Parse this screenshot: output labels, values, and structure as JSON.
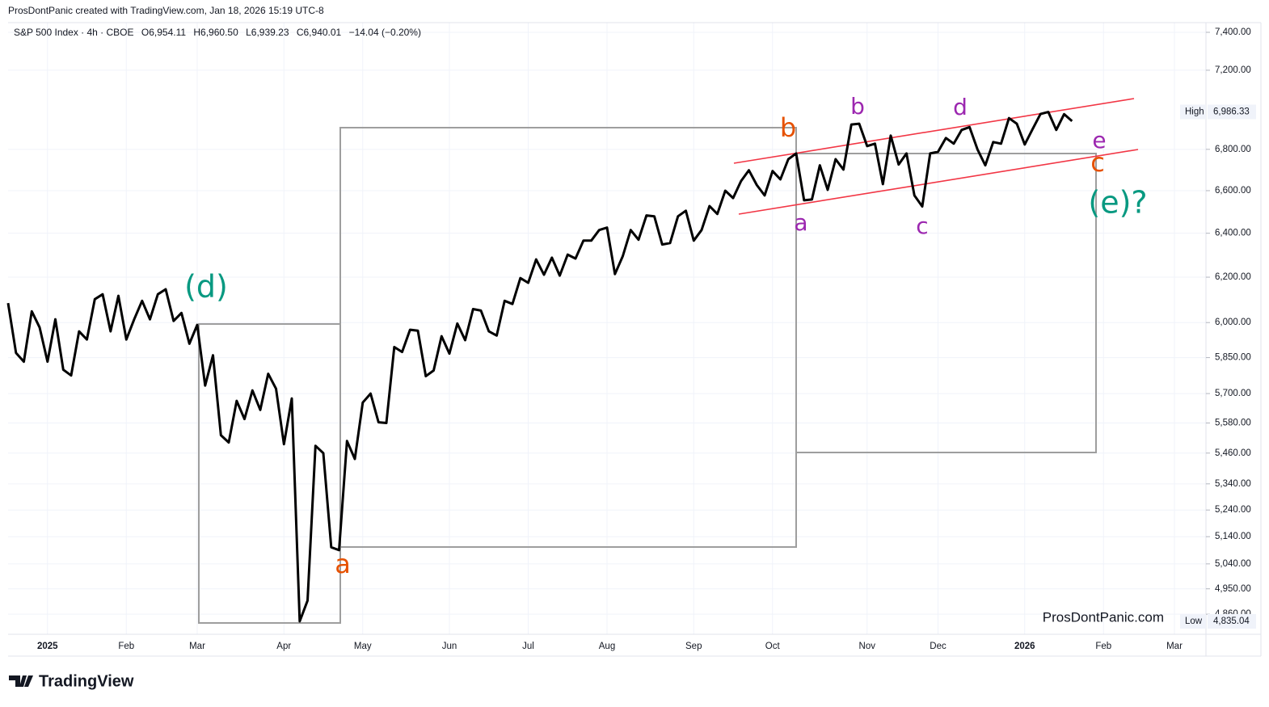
{
  "header": {
    "credit": "ProsDontPanic created with TradingView.com, Jan 18, 2026 15:19 UTC-8"
  },
  "footer": {
    "brand": "TradingView"
  },
  "chart_data": {
    "type": "line",
    "title": "S&P 500 Index · 4h · CBOE",
    "ohlc": [
      "O6,954.11",
      "H6,960.50",
      "L6,939.23",
      "C6,940.01",
      "−14.04 (−0.20%)"
    ],
    "watermark": "ProsDontPanic.com",
    "log_scale": true,
    "grid": true,
    "categories": [
      null,
      null,
      null,
      null,
      null,
      "2025",
      null,
      null,
      null,
      null,
      null,
      null,
      null,
      null,
      null,
      "Feb",
      null,
      null,
      null,
      null,
      null,
      null,
      null,
      null,
      "Mar",
      null,
      null,
      null,
      null,
      null,
      null,
      null,
      null,
      null,
      null,
      "Apr",
      null,
      null,
      null,
      null,
      null,
      null,
      null,
      null,
      null,
      "May",
      null,
      null,
      null,
      null,
      null,
      null,
      null,
      null,
      null,
      null,
      "Jun",
      null,
      null,
      null,
      null,
      null,
      null,
      null,
      null,
      null,
      "Jul",
      null,
      null,
      null,
      null,
      null,
      null,
      null,
      null,
      null,
      "Aug",
      null,
      null,
      null,
      null,
      null,
      null,
      null,
      null,
      null,
      null,
      "Sep",
      null,
      null,
      null,
      null,
      null,
      null,
      null,
      null,
      null,
      "Oct",
      null,
      null,
      null,
      null,
      null,
      null,
      null,
      null,
      null,
      null,
      null,
      "Nov",
      null,
      null,
      null,
      null,
      null,
      null,
      null,
      null,
      "Dec",
      null,
      null,
      null,
      null,
      null,
      null,
      null,
      null,
      null,
      null,
      "2026",
      null,
      null,
      null,
      null,
      null,
      null,
      null,
      null,
      null,
      "Feb",
      null,
      null,
      null,
      null,
      null,
      null,
      null,
      null,
      "Mar",
      null,
      null,
      null,
      null
    ],
    "series": [
      {
        "name": "S&P 500 Index",
        "color": "#000000",
        "values": [
          6085,
          5870,
          5833,
          6049,
          5979,
          5833,
          6014,
          5799,
          5775,
          5962,
          5927,
          6102,
          6124,
          5962,
          6117,
          5927,
          6014,
          6095,
          6014,
          6124,
          6146,
          6007,
          6042,
          5909,
          5990,
          5733,
          5860,
          5531,
          5502,
          5670,
          5596,
          5713,
          5633,
          5782,
          5720,
          5495,
          5680,
          4835,
          4908,
          5489,
          5460,
          5101,
          5090,
          5508,
          5437,
          5663,
          5700,
          5583,
          5580,
          5895,
          5874,
          5969,
          5965,
          5772,
          5796,
          5941,
          5867,
          5996,
          5924,
          6059,
          6052,
          5962,
          5944,
          6095,
          6081,
          6196,
          6175,
          6280,
          6211,
          6288,
          6207,
          6302,
          6284,
          6366,
          6366,
          6415,
          6426,
          6214,
          6295,
          6415,
          6370,
          6483,
          6479,
          6348,
          6355,
          6479,
          6505,
          6366,
          6415,
          6527,
          6490,
          6600,
          6565,
          6646,
          6698,
          6627,
          6577,
          6694,
          6654,
          6752,
          6780,
          6554,
          6558,
          6722,
          6604,
          6752,
          6701,
          6923,
          6927,
          6816,
          6828,
          6631,
          6868,
          6726,
          6780,
          6577,
          6525,
          6780,
          6788,
          6856,
          6828,
          6896,
          6910,
          6800,
          6722,
          6836,
          6828,
          6955,
          6927,
          6824,
          6900,
          6976,
          6986,
          6896,
          6975,
          6940,
          null,
          null,
          null,
          null,
          null,
          null,
          null,
          null,
          null,
          null,
          null,
          null,
          null,
          null,
          null,
          null,
          null
        ]
      }
    ],
    "ylim": [
      4790,
      7452
    ],
    "yticks": [
      {
        "value": 7400,
        "label": "7,400.00"
      },
      {
        "value": 7200,
        "label": "7,200.00"
      },
      {
        "value": 6800,
        "label": "6,800.00"
      },
      {
        "value": 6600,
        "label": "6,600.00"
      },
      {
        "value": 6400,
        "label": "6,400.00"
      },
      {
        "value": 6200,
        "label": "6,200.00"
      },
      {
        "value": 6000,
        "label": "6,000.00"
      },
      {
        "value": 5850,
        "label": "5,850.00"
      },
      {
        "value": 5700,
        "label": "5,700.00"
      },
      {
        "value": 5580,
        "label": "5,580.00"
      },
      {
        "value": 5460,
        "label": "5,460.00"
      },
      {
        "value": 5340,
        "label": "5,340.00"
      },
      {
        "value": 5240,
        "label": "5,240.00"
      },
      {
        "value": 5140,
        "label": "5,140.00"
      },
      {
        "value": 5040,
        "label": "5,040.00"
      },
      {
        "value": 4950,
        "label": "4,950.00"
      },
      {
        "value": 4860,
        "label": "4,860.00"
      }
    ],
    "high_marker": {
      "name": "High",
      "value": 6986.33,
      "label": "6,986.33"
    },
    "low_marker": {
      "name": "Low",
      "value": 4835.04,
      "label": "4,835.04"
    },
    "annotations": [
      "(d)",
      "a",
      "b",
      "a",
      "b",
      "c",
      "d",
      "e",
      "c",
      "(e)?"
    ]
  }
}
